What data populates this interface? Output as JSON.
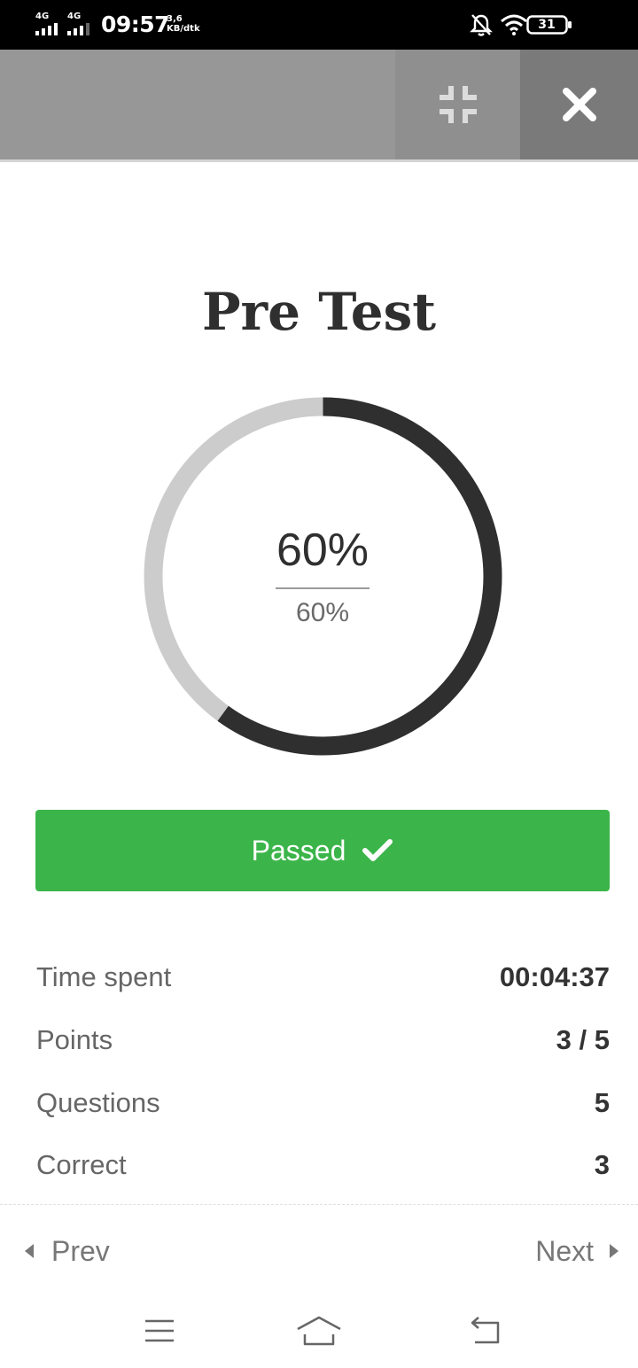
{
  "status_bar": {
    "sim1_label": "4G",
    "sim2_label": "4G",
    "time": "09:57",
    "net_speed_value": "3,6",
    "net_speed_unit": "KB/dtk",
    "battery_level": "31",
    "icons": [
      "signal-icon",
      "bell-off-icon",
      "wifi-icon",
      "battery-icon"
    ]
  },
  "toolbar": {
    "icons": [
      "collapse-icon",
      "close-icon"
    ]
  },
  "quiz": {
    "title": "Pre Test",
    "score_percent": "60%",
    "passing_percent": "60%",
    "score_fraction": 0.6,
    "status_label": "Passed"
  },
  "stats": [
    {
      "label": "Time spent",
      "value": "00:04:37"
    },
    {
      "label": "Points",
      "value": "3 / 5"
    },
    {
      "label": "Questions",
      "value": "5"
    },
    {
      "label": "Correct",
      "value": "3"
    }
  ],
  "navigation": {
    "prev_label": "Prev",
    "next_label": "Next"
  },
  "system_nav": {
    "icons": [
      "menu-icon",
      "home-icon",
      "back-icon"
    ]
  },
  "colors": {
    "toolbar": "#979797",
    "ring_track": "#cccccc",
    "ring_progress": "#2f2f2f",
    "passed_green": "#3bb54a"
  }
}
